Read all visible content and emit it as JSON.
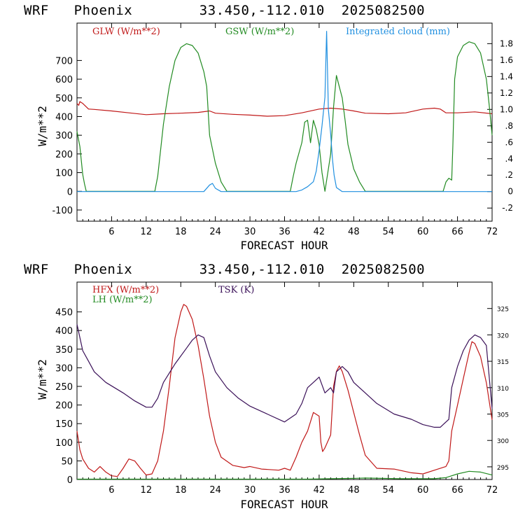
{
  "colors": {
    "red": "#c01818",
    "green": "#228b22",
    "blue": "#1f8fe0",
    "purple": "#3a1058"
  },
  "header1": {
    "model": "WRF",
    "station": "Phoenix",
    "coords": "33.450,-112.010",
    "run": "2025082500"
  },
  "header2": {
    "model": "WRF",
    "station": "Phoenix",
    "coords": "33.450,-112.010",
    "run": "2025082500"
  },
  "chart_data": [
    {
      "type": "line",
      "xlabel": "FORECAST HOUR",
      "ylabel": "W/m**2",
      "xlim": [
        0,
        72
      ],
      "ylim": [
        -160,
        900
      ],
      "y2lim": [
        -0.36,
        2.05
      ],
      "x_ticks": [
        "6",
        "12",
        "18",
        "24",
        "30",
        "36",
        "42",
        "48",
        "54",
        "60",
        "66",
        "72"
      ],
      "y_ticks": [
        "-100",
        "0",
        "100",
        "200",
        "300",
        "400",
        "500",
        "600",
        "700"
      ],
      "y2_ticks": [
        "-.2",
        "0",
        ".2",
        ".4",
        ".6",
        ".8",
        "1.0",
        "1.2",
        "1.4",
        "1.6",
        "1.8"
      ],
      "series": [
        {
          "name": "GLW (W/m**2)",
          "axis": "left",
          "color": "red",
          "points": [
            [
              0,
              470
            ],
            [
              0.3,
              460
            ],
            [
              0.5,
              480
            ],
            [
              1,
              470
            ],
            [
              1.5,
              455
            ],
            [
              2,
              440
            ],
            [
              3,
              438
            ],
            [
              6,
              430
            ],
            [
              9,
              420
            ],
            [
              12,
              410
            ],
            [
              15,
              415
            ],
            [
              18,
              418
            ],
            [
              21,
              422
            ],
            [
              23,
              430
            ],
            [
              24,
              418
            ],
            [
              27,
              412
            ],
            [
              30,
              408
            ],
            [
              33,
              402
            ],
            [
              36,
              405
            ],
            [
              39,
              420
            ],
            [
              42,
              440
            ],
            [
              44,
              445
            ],
            [
              46,
              440
            ],
            [
              48,
              430
            ],
            [
              50,
              418
            ],
            [
              54,
              415
            ],
            [
              57,
              420
            ],
            [
              60,
              440
            ],
            [
              62,
              445
            ],
            [
              63,
              440
            ],
            [
              64,
              420
            ],
            [
              66,
              420
            ],
            [
              69,
              425
            ],
            [
              72,
              415
            ]
          ]
        },
        {
          "name": "GSW (W/m**2)",
          "axis": "left",
          "color": "green",
          "points": [
            [
              0,
              320
            ],
            [
              0.5,
              240
            ],
            [
              1,
              90
            ],
            [
              1.3,
              40
            ],
            [
              1.6,
              0
            ],
            [
              12,
              0
            ],
            [
              13.5,
              0
            ],
            [
              14,
              80
            ],
            [
              15,
              360
            ],
            [
              16,
              560
            ],
            [
              17,
              700
            ],
            [
              18,
              770
            ],
            [
              19,
              790
            ],
            [
              20,
              780
            ],
            [
              21,
              740
            ],
            [
              22,
              640
            ],
            [
              22.5,
              560
            ],
            [
              23,
              300
            ],
            [
              24,
              150
            ],
            [
              25,
              50
            ],
            [
              26,
              0
            ],
            [
              37,
              0
            ],
            [
              37.5,
              80
            ],
            [
              38,
              150
            ],
            [
              39,
              260
            ],
            [
              39.5,
              370
            ],
            [
              40,
              380
            ],
            [
              40.5,
              260
            ],
            [
              41,
              380
            ],
            [
              41.5,
              330
            ],
            [
              42,
              250
            ],
            [
              42.5,
              100
            ],
            [
              43,
              0
            ],
            [
              44,
              200
            ],
            [
              44.5,
              450
            ],
            [
              45,
              620
            ],
            [
              45.5,
              560
            ],
            [
              46,
              500
            ],
            [
              46.5,
              380
            ],
            [
              47,
              250
            ],
            [
              48,
              120
            ],
            [
              49,
              50
            ],
            [
              50,
              0
            ],
            [
              63.5,
              0
            ],
            [
              64,
              50
            ],
            [
              64.5,
              70
            ],
            [
              65,
              60
            ],
            [
              65.2,
              250
            ],
            [
              65.5,
              600
            ],
            [
              66,
              720
            ],
            [
              67,
              780
            ],
            [
              68,
              800
            ],
            [
              69,
              790
            ],
            [
              70,
              740
            ],
            [
              71,
              600
            ],
            [
              71.5,
              460
            ],
            [
              72,
              300
            ]
          ]
        },
        {
          "name": "Integrated cloud (mm)",
          "axis": "right",
          "color": "blue",
          "points": [
            [
              0,
              0
            ],
            [
              22,
              0
            ],
            [
              23,
              0.08
            ],
            [
              23.5,
              0.1
            ],
            [
              24,
              0.04
            ],
            [
              25,
              0
            ],
            [
              38,
              0
            ],
            [
              39,
              0.02
            ],
            [
              40,
              0.06
            ],
            [
              41,
              0.12
            ],
            [
              41.5,
              0.25
            ],
            [
              42,
              0.5
            ],
            [
              42.5,
              0.8
            ],
            [
              43,
              1.15
            ],
            [
              43.3,
              1.95
            ],
            [
              43.6,
              1.0
            ],
            [
              44,
              0.7
            ],
            [
              44.3,
              0.4
            ],
            [
              44.6,
              0.2
            ],
            [
              45,
              0.05
            ],
            [
              46,
              0
            ],
            [
              72,
              0
            ]
          ]
        }
      ]
    },
    {
      "type": "line",
      "xlabel": "FORECAST HOUR",
      "ylabel": "W/m**2",
      "xlim": [
        0,
        72
      ],
      "ylim": [
        0,
        530
      ],
      "y2lim": [
        292.6,
        330
      ],
      "x_ticks": [
        "6",
        "12",
        "18",
        "24",
        "30",
        "36",
        "42",
        "48",
        "54",
        "60",
        "66",
        "72"
      ],
      "y_ticks": [
        "0",
        "50",
        "100",
        "150",
        "200",
        "250",
        "300",
        "350",
        "400",
        "450"
      ],
      "y2_ticks": [
        "295",
        "300",
        "305",
        "310",
        "315",
        "320",
        "325"
      ],
      "series": [
        {
          "name": "HFX (W/m**2)",
          "axis": "left",
          "color": "red",
          "points": [
            [
              0,
              130
            ],
            [
              0.5,
              80
            ],
            [
              1,
              55
            ],
            [
              2,
              30
            ],
            [
              3,
              20
            ],
            [
              4,
              35
            ],
            [
              5,
              20
            ],
            [
              6,
              10
            ],
            [
              7,
              8
            ],
            [
              8,
              30
            ],
            [
              9,
              55
            ],
            [
              10,
              50
            ],
            [
              11,
              30
            ],
            [
              12,
              12
            ],
            [
              13,
              15
            ],
            [
              14,
              50
            ],
            [
              15,
              130
            ],
            [
              16,
              250
            ],
            [
              17,
              380
            ],
            [
              18,
              450
            ],
            [
              18.5,
              470
            ],
            [
              19,
              465
            ],
            [
              20,
              430
            ],
            [
              21,
              360
            ],
            [
              22,
              270
            ],
            [
              23,
              170
            ],
            [
              24,
              100
            ],
            [
              25,
              60
            ],
            [
              27,
              38
            ],
            [
              29,
              32
            ],
            [
              30,
              35
            ],
            [
              32,
              28
            ],
            [
              35,
              25
            ],
            [
              36,
              30
            ],
            [
              37,
              25
            ],
            [
              38,
              60
            ],
            [
              39,
              100
            ],
            [
              40,
              130
            ],
            [
              41,
              180
            ],
            [
              42,
              170
            ],
            [
              42.3,
              100
            ],
            [
              42.6,
              75
            ],
            [
              43,
              85
            ],
            [
              44,
              120
            ],
            [
              44.5,
              250
            ],
            [
              45,
              290
            ],
            [
              45.5,
              305
            ],
            [
              46,
              290
            ],
            [
              47,
              240
            ],
            [
              48,
              180
            ],
            [
              49,
              120
            ],
            [
              50,
              65
            ],
            [
              52,
              30
            ],
            [
              55,
              28
            ],
            [
              58,
              18
            ],
            [
              60,
              15
            ],
            [
              62,
              25
            ],
            [
              64,
              35
            ],
            [
              64.5,
              50
            ],
            [
              65,
              130
            ],
            [
              66,
              200
            ],
            [
              67,
              270
            ],
            [
              68,
              340
            ],
            [
              68.5,
              370
            ],
            [
              69,
              365
            ],
            [
              70,
              330
            ],
            [
              71,
              260
            ],
            [
              72,
              160
            ]
          ]
        },
        {
          "name": "LH (W/m**2)",
          "axis": "left",
          "color": "green",
          "points": [
            [
              0,
              1
            ],
            [
              40,
              1
            ],
            [
              44,
              2
            ],
            [
              48,
              3
            ],
            [
              50,
              4
            ],
            [
              56,
              2
            ],
            [
              62,
              2
            ],
            [
              64,
              5
            ],
            [
              66,
              15
            ],
            [
              68,
              22
            ],
            [
              70,
              20
            ],
            [
              72,
              12
            ]
          ]
        },
        {
          "name": "TSK (K)",
          "axis": "right",
          "color": "purple",
          "points": [
            [
              0,
              322
            ],
            [
              1,
              317
            ],
            [
              2,
              315
            ],
            [
              3,
              313
            ],
            [
              5,
              311
            ],
            [
              8,
              309
            ],
            [
              10,
              307.5
            ],
            [
              12,
              306.3
            ],
            [
              13,
              306.3
            ],
            [
              14,
              308
            ],
            [
              15,
              311
            ],
            [
              17,
              314.5
            ],
            [
              19,
              317.5
            ],
            [
              20,
              319
            ],
            [
              21,
              320
            ],
            [
              22,
              319.5
            ],
            [
              23,
              316
            ],
            [
              24,
              313
            ],
            [
              26,
              310
            ],
            [
              28,
              308
            ],
            [
              30,
              306.5
            ],
            [
              33,
              305
            ],
            [
              36,
              303.5
            ],
            [
              38,
              305
            ],
            [
              39,
              307
            ],
            [
              40,
              310
            ],
            [
              41,
              311
            ],
            [
              42,
              312
            ],
            [
              43,
              309
            ],
            [
              44,
              310
            ],
            [
              44.5,
              309
            ],
            [
              45,
              313
            ],
            [
              46,
              314
            ],
            [
              47,
              313
            ],
            [
              48,
              311
            ],
            [
              50,
              309
            ],
            [
              52,
              307
            ],
            [
              55,
              305
            ],
            [
              58,
              304
            ],
            [
              60,
              303
            ],
            [
              62,
              302.5
            ],
            [
              63,
              302.5
            ],
            [
              64,
              303.5
            ],
            [
              64.5,
              304
            ],
            [
              65,
              310
            ],
            [
              66,
              314
            ],
            [
              67,
              317
            ],
            [
              68,
              319
            ],
            [
              69,
              320
            ],
            [
              70,
              319.5
            ],
            [
              71,
              318
            ],
            [
              72,
              306
            ]
          ]
        }
      ]
    }
  ]
}
